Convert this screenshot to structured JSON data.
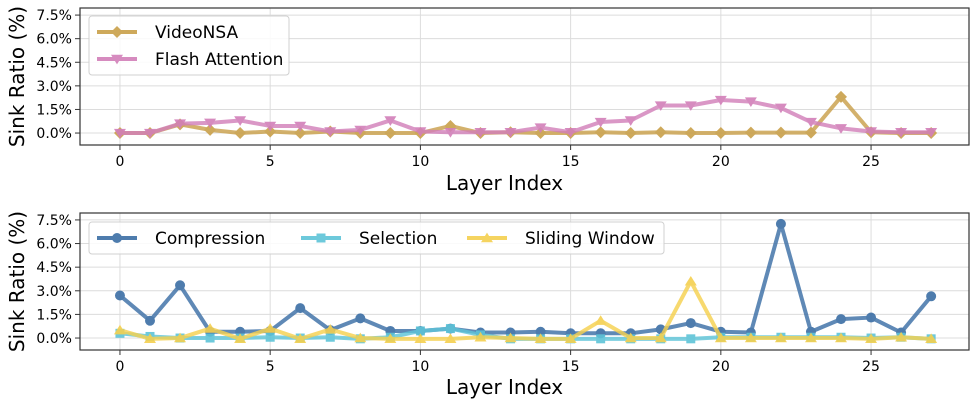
{
  "chart_data": [
    {
      "type": "line",
      "title": "",
      "xlabel": "Layer Index",
      "ylabel": "Sink Ratio (%)",
      "xlim": [
        -1.33,
        28.26
      ],
      "ylim": [
        -0.76,
        7.95
      ],
      "xticks": [
        0,
        5,
        10,
        15,
        20,
        25
      ],
      "xtick_labels": [
        "0",
        "5",
        "10",
        "15",
        "20",
        "25"
      ],
      "yticks": [
        0,
        1.5,
        3.0,
        4.5,
        6.0,
        7.5
      ],
      "ytick_labels": [
        "0.0%",
        "1.5%",
        "3.0%",
        "4.5%",
        "6.0%",
        "7.5%"
      ],
      "grid": true,
      "legend": "upper-left",
      "x": [
        0,
        1,
        2,
        3,
        4,
        5,
        6,
        7,
        8,
        9,
        10,
        11,
        12,
        13,
        14,
        15,
        16,
        17,
        18,
        19,
        20,
        21,
        22,
        23,
        24,
        25,
        26,
        27
      ],
      "series": [
        {
          "name": "VideoNSA",
          "color": "#c9a04a",
          "marker": "diamond",
          "values": [
            0,
            0,
            0.55,
            0.2,
            0,
            0.1,
            0,
            0.1,
            0,
            0,
            0,
            0.45,
            0,
            0.05,
            0,
            0,
            0.05,
            0,
            0.05,
            0,
            0,
            0.03,
            0.03,
            0.03,
            2.3,
            0.05,
            0,
            0
          ]
        },
        {
          "name": "Flash Attention",
          "color": "#d27fb9",
          "marker": "triangle-down",
          "values": [
            0,
            0,
            0.6,
            0.65,
            0.8,
            0.45,
            0.45,
            0.1,
            0.2,
            0.8,
            0.1,
            0.05,
            0.05,
            0.05,
            0.35,
            0.05,
            0.7,
            0.8,
            1.75,
            1.75,
            2.1,
            2.0,
            1.6,
            0.7,
            0.3,
            0.1,
            0.05,
            0.05
          ]
        }
      ]
    },
    {
      "type": "line",
      "title": "",
      "xlabel": "Layer Index",
      "ylabel": "Sink Ratio (%)",
      "xlim": [
        -1.33,
        28.26
      ],
      "ylim": [
        -0.76,
        7.94
      ],
      "xticks": [
        0,
        5,
        10,
        15,
        20,
        25
      ],
      "xtick_labels": [
        "0",
        "5",
        "10",
        "15",
        "20",
        "25"
      ],
      "yticks": [
        0,
        1.5,
        3.0,
        4.5,
        6.0,
        7.5
      ],
      "ytick_labels": [
        "0.0%",
        "1.5%",
        "3.0%",
        "4.5%",
        "6.0%",
        "7.5%"
      ],
      "grid": true,
      "legend": "upper-left",
      "x": [
        0,
        1,
        2,
        3,
        4,
        5,
        6,
        7,
        8,
        9,
        10,
        11,
        12,
        13,
        14,
        15,
        16,
        17,
        18,
        19,
        20,
        21,
        22,
        23,
        24,
        25,
        26,
        27
      ],
      "series": [
        {
          "name": "Compression",
          "color": "#3b6ea5",
          "marker": "circle",
          "values": [
            2.7,
            1.1,
            3.35,
            0.4,
            0.4,
            0.45,
            1.9,
            0.5,
            1.25,
            0.45,
            0.45,
            0.6,
            0.35,
            0.35,
            0.4,
            0.3,
            0.3,
            0.3,
            0.55,
            0.95,
            0.4,
            0.35,
            7.25,
            0.4,
            1.2,
            1.3,
            0.35,
            2.65
          ]
        },
        {
          "name": "Selection",
          "color": "#5ec4d8",
          "marker": "square",
          "values": [
            0.3,
            0.1,
            0,
            0,
            0,
            0.05,
            0,
            0.05,
            -0.05,
            0.05,
            0.45,
            0.6,
            0.2,
            -0.05,
            -0.05,
            -0.05,
            -0.05,
            -0.05,
            -0.05,
            -0.05,
            0.05,
            0.05,
            0.05,
            0.05,
            0.05,
            0,
            0.05,
            -0.05
          ]
        },
        {
          "name": "Sliding Window",
          "color": "#f5d04f",
          "marker": "triangle-up",
          "values": [
            0.5,
            -0.05,
            0,
            0.6,
            -0.05,
            0.6,
            -0.05,
            0.55,
            0,
            -0.05,
            -0.05,
            -0.05,
            0.05,
            0,
            -0.05,
            -0.05,
            1.1,
            0,
            0,
            3.6,
            0,
            0,
            0,
            0,
            0,
            -0.05,
            0.05,
            -0.05
          ]
        }
      ]
    }
  ]
}
